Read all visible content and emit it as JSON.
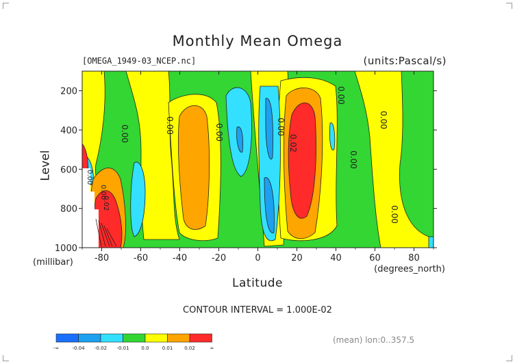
{
  "chart_data": {
    "type": "heatmap",
    "title": "Monthly Mean Omega",
    "file_label": "[OMEGA_1949-03_NCEP.nc]",
    "units_label": "(units:Pascal/s)",
    "ylabel": "Level",
    "y_unit": "(millibar)",
    "xlabel": "Latitude",
    "x_unit": "(degrees_north)",
    "contour_interval": "CONTOUR INTERVAL = 1.000E-02",
    "mean_note": "(mean) lon:0..357.5",
    "xlim": [
      -90,
      90
    ],
    "ylim": [
      1000,
      100
    ],
    "xticks": [
      "-80",
      "-60",
      "-40",
      "-20",
      "0",
      "20",
      "40",
      "60",
      "80"
    ],
    "yticks": [
      "200",
      "400",
      "600",
      "800",
      "1000"
    ],
    "contour_labels": [
      "0.00",
      "0.00",
      "0.00",
      "0.00",
      "0.02",
      "0.00",
      "0.00",
      "0.00",
      "0.00",
      "0.00",
      "0.00",
      "0.02"
    ],
    "colorbar": {
      "labels": [
        "-∞",
        "-0.04",
        "-0.02",
        "-0.01",
        "0.0",
        "0.01",
        "0.02",
        "∞"
      ],
      "colors": [
        "#1a6fff",
        "#1ea0f0",
        "#33e0ff",
        "#33d633",
        "#ffff00",
        "#ffa500",
        "#ff2a2a"
      ]
    },
    "colors": {
      "background": "#33d633",
      "weak_descent": "#ffff00",
      "moderate_descent": "#ffa500",
      "strong_descent": "#ff2a2a",
      "weak_ascent": "#33e0ff",
      "moderate_ascent": "#1ea0f0"
    }
  }
}
